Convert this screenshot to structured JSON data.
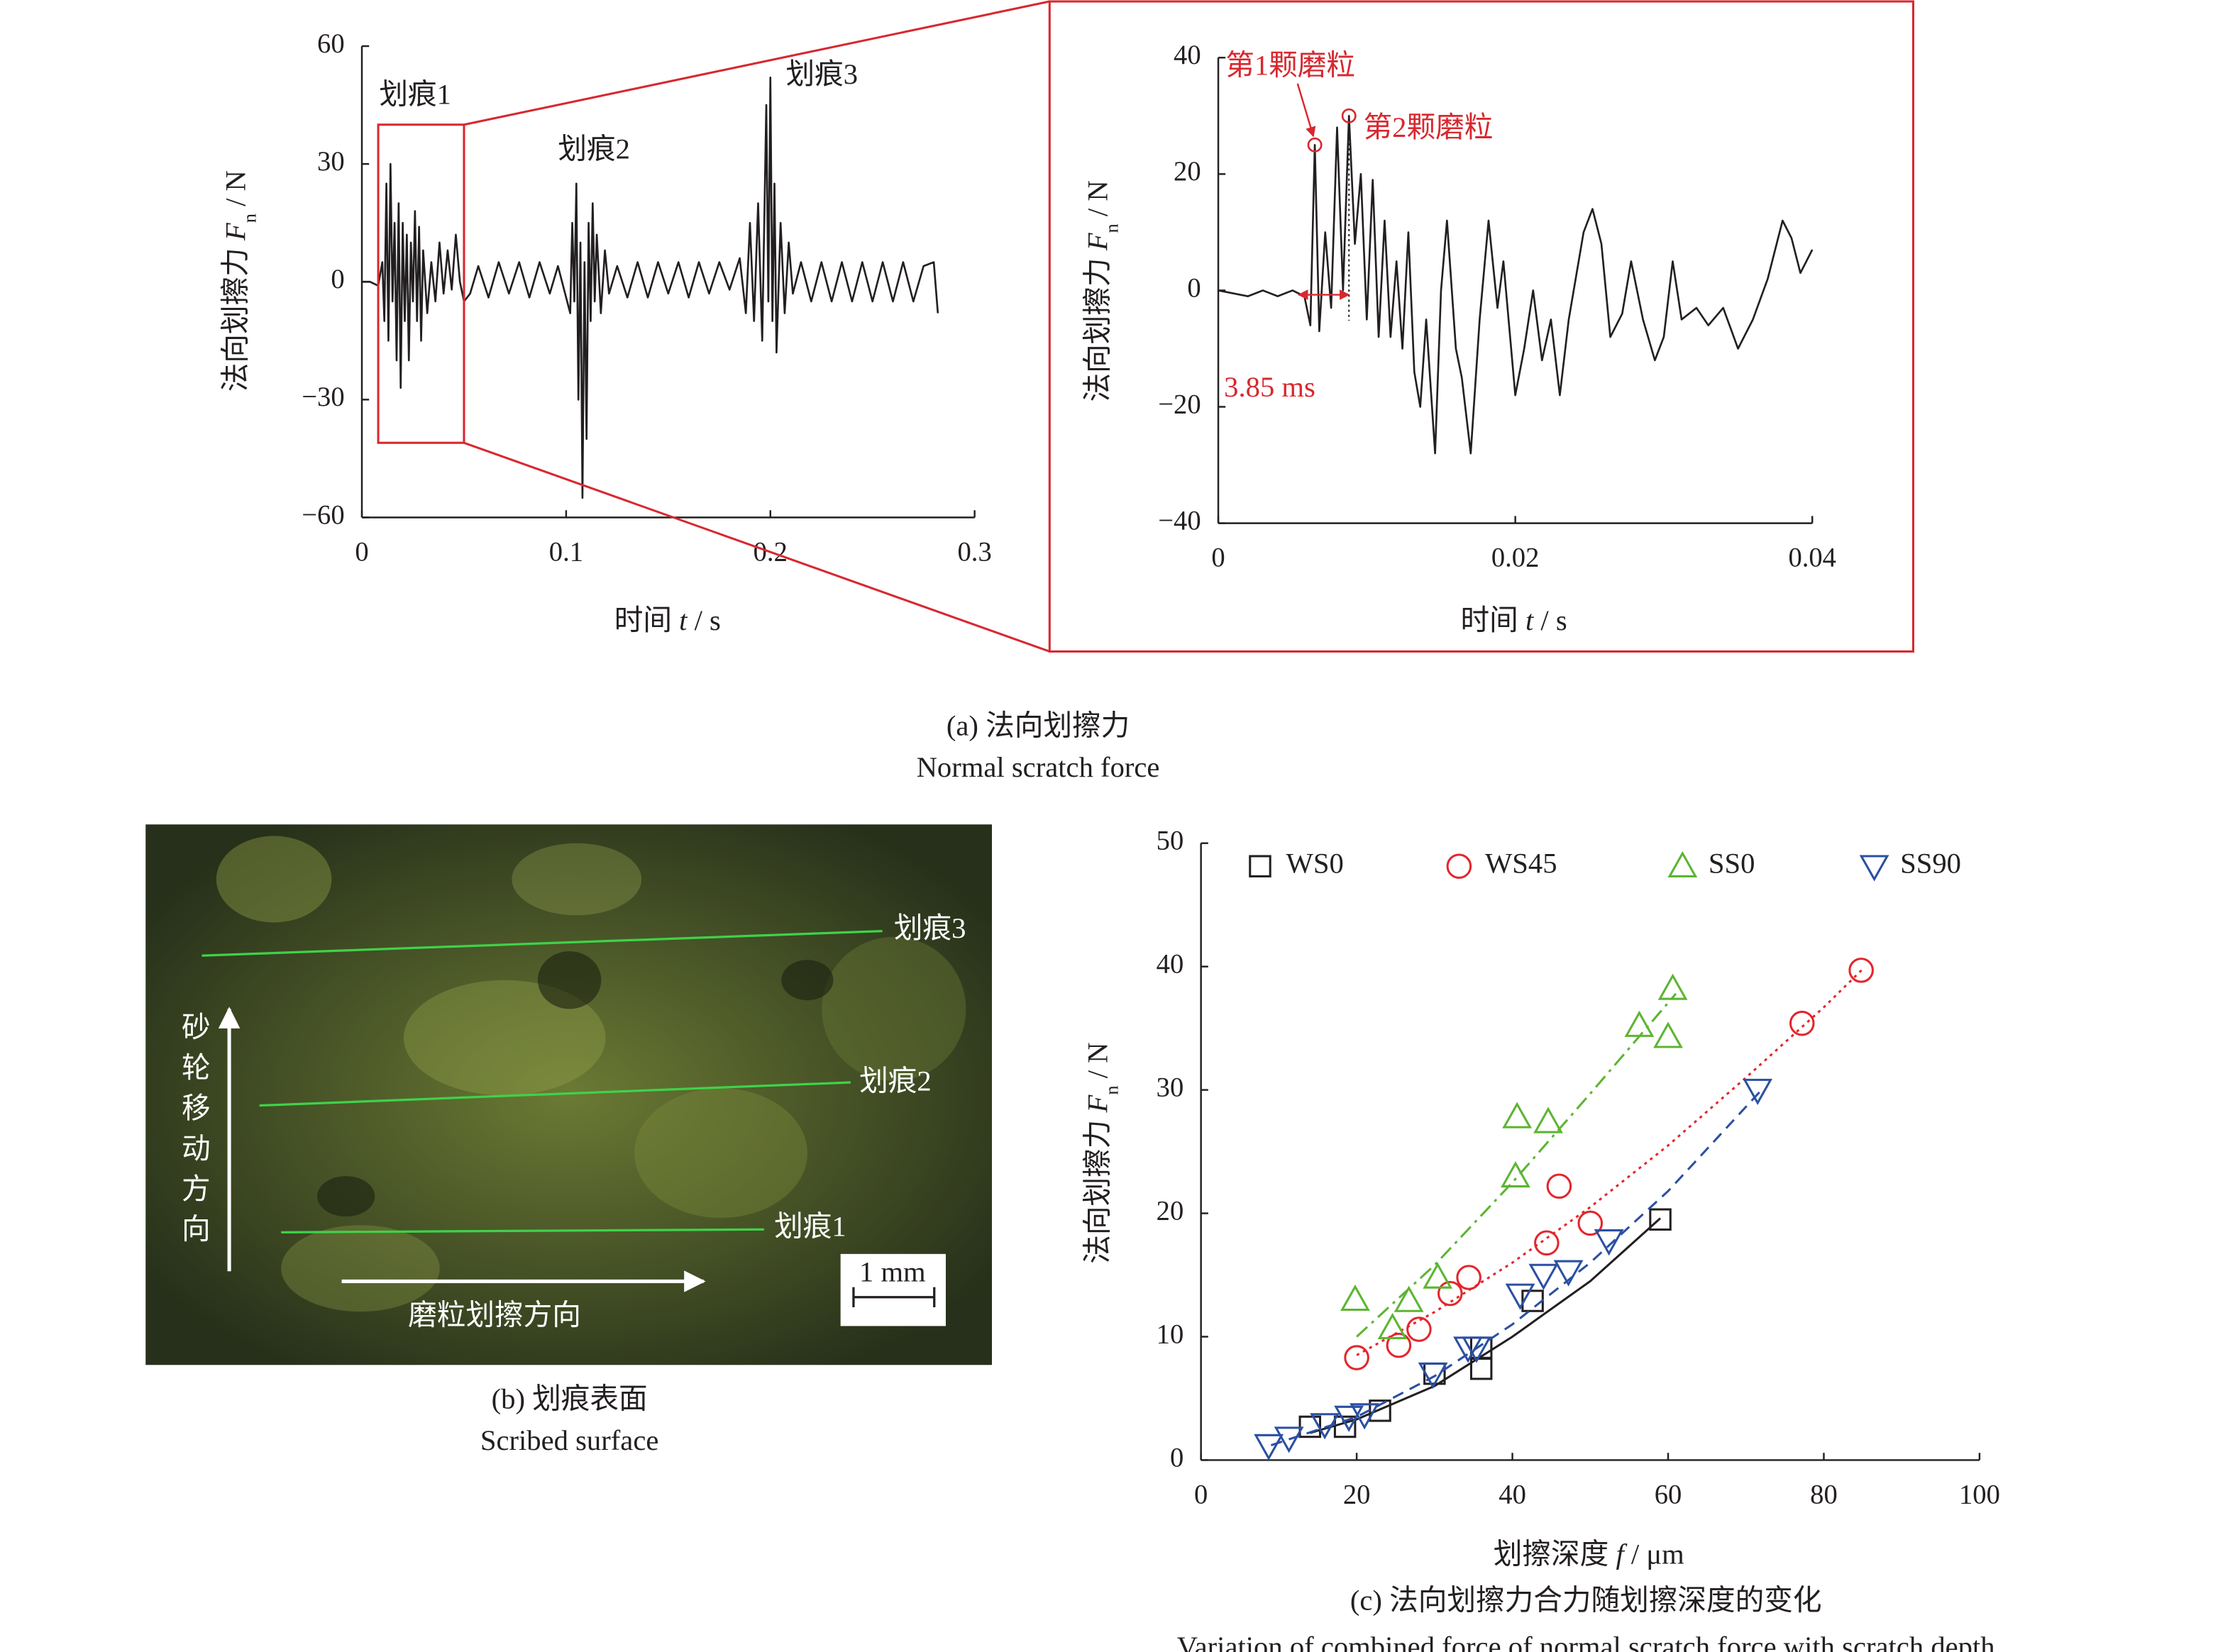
{
  "chart_data": [
    {
      "type": "line",
      "xlabel": [
        "时间 ",
        "t",
        " / s"
      ],
      "ylabel": [
        "法向划擦力 ",
        "F",
        "n",
        " / N"
      ],
      "x": [
        0,
        0.004,
        0.008,
        0.01,
        0.011,
        0.012,
        0.013,
        0.014,
        0.015,
        0.016,
        0.017,
        0.018,
        0.019,
        0.02,
        0.021,
        0.022,
        0.023,
        0.024,
        0.025,
        0.026,
        0.027,
        0.028,
        0.029,
        0.03,
        0.032,
        0.034,
        0.036,
        0.038,
        0.04,
        0.042,
        0.044,
        0.046,
        0.048,
        0.05,
        0.053,
        0.057,
        0.062,
        0.067,
        0.072,
        0.077,
        0.082,
        0.087,
        0.092,
        0.096,
        0.099,
        0.102,
        0.103,
        0.104,
        0.105,
        0.106,
        0.107,
        0.108,
        0.109,
        0.11,
        0.111,
        0.112,
        0.113,
        0.114,
        0.115,
        0.117,
        0.119,
        0.121,
        0.125,
        0.13,
        0.135,
        0.14,
        0.145,
        0.15,
        0.155,
        0.16,
        0.165,
        0.17,
        0.175,
        0.18,
        0.185,
        0.188,
        0.19,
        0.192,
        0.194,
        0.196,
        0.198,
        0.199,
        0.2,
        0.201,
        0.202,
        0.203,
        0.205,
        0.207,
        0.209,
        0.211,
        0.215,
        0.22,
        0.225,
        0.23,
        0.235,
        0.24,
        0.245,
        0.25,
        0.255,
        0.26,
        0.265,
        0.27,
        0.275,
        0.28,
        0.282
      ],
      "values": [
        0,
        0,
        -1,
        5,
        -10,
        25,
        -15,
        30,
        -5,
        15,
        -20,
        20,
        -27,
        15,
        -10,
        12,
        -20,
        10,
        -5,
        18,
        -10,
        14,
        -15,
        8,
        -8,
        5,
        -5,
        10,
        -3,
        8,
        -2,
        12,
        0,
        -5,
        -3,
        4,
        -4,
        5,
        -3,
        5,
        -4,
        5,
        -3,
        4,
        -2,
        -8,
        15,
        -5,
        25,
        -30,
        10,
        -55,
        5,
        -40,
        15,
        -10,
        20,
        -5,
        12,
        -8,
        8,
        -3,
        4,
        -4,
        5,
        -4,
        5,
        -3,
        5,
        -4,
        5,
        -3,
        5,
        -2,
        6,
        -8,
        15,
        -10,
        20,
        -15,
        45,
        -5,
        52,
        -10,
        25,
        -18,
        15,
        -8,
        10,
        -3,
        5,
        -5,
        5,
        -5,
        5,
        -5,
        5,
        -5,
        5,
        -5,
        5,
        -5,
        4,
        5,
        -8
      ],
      "color": "#231f20",
      "xlim": [
        0,
        0.3
      ],
      "xticks": [
        0,
        0.1,
        0.2,
        0.3
      ],
      "ylim": [
        -60,
        60
      ],
      "yticks": [
        {
          "value": -60,
          "label": "−60"
        },
        {
          "value": -30,
          "label": "−30"
        },
        0,
        30,
        60
      ],
      "annotations": [
        "划痕1",
        "划痕2",
        "划痕3"
      ],
      "highlight": {
        "x": [
          0.008,
          0.05
        ],
        "y": [
          -41,
          40
        ],
        "color": "#d7282f"
      }
    },
    {
      "type": "line",
      "xlabel": [
        "时间 ",
        "t",
        " / s"
      ],
      "ylabel": [
        "法向划擦力 ",
        "F",
        "n",
        " / N"
      ],
      "x": [
        0,
        0.002,
        0.003,
        0.004,
        0.005,
        0.0058,
        0.0062,
        0.0065,
        0.0068,
        0.0072,
        0.0076,
        0.008,
        0.0084,
        0.0088,
        0.0092,
        0.0096,
        0.01,
        0.0104,
        0.0108,
        0.0112,
        0.0116,
        0.012,
        0.0124,
        0.0128,
        0.0132,
        0.0136,
        0.014,
        0.0146,
        0.015,
        0.0154,
        0.016,
        0.0164,
        0.017,
        0.0176,
        0.0182,
        0.0188,
        0.0192,
        0.02,
        0.0206,
        0.0212,
        0.0218,
        0.0224,
        0.023,
        0.0236,
        0.0246,
        0.0252,
        0.0258,
        0.0264,
        0.0272,
        0.0278,
        0.0286,
        0.0294,
        0.03,
        0.0306,
        0.0312,
        0.0322,
        0.033,
        0.034,
        0.035,
        0.036,
        0.037,
        0.038,
        0.0386,
        0.0392,
        0.04
      ],
      "values": [
        0,
        -1,
        0,
        -1,
        0,
        -1,
        -6,
        25,
        -7,
        10,
        -3,
        28,
        0,
        30,
        8,
        20,
        -5,
        19,
        -8,
        12,
        -8,
        5,
        -10,
        10,
        -14,
        -20,
        -5,
        -28,
        0,
        12,
        -10,
        -15,
        -28,
        -5,
        12,
        -3,
        5,
        -18,
        -10,
        0,
        -12,
        -5,
        -18,
        -5,
        10,
        14,
        8,
        -8,
        -4,
        5,
        -5,
        -12,
        -8,
        5,
        -5,
        -3,
        -6,
        -3,
        -10,
        -5,
        2,
        12,
        9,
        3,
        7
      ],
      "color": "#231f20",
      "xlim": [
        0,
        0.04
      ],
      "xticks": [
        0,
        0.02,
        0.04
      ],
      "ylim": [
        -40,
        40
      ],
      "yticks": [
        {
          "value": -40,
          "label": "−40"
        },
        {
          "value": -20,
          "label": "−20"
        },
        0,
        20,
        40
      ],
      "annotations": [
        "第1颗磨粒",
        "第2颗磨粒",
        "3.85 ms"
      ],
      "annotation_color": "#d7282f",
      "frame_color": "#d7282f"
    },
    {
      "type": "scatter",
      "xlabel": [
        "划擦深度 ",
        "f",
        " / μm"
      ],
      "ylabel": [
        "法向划擦力 ",
        "F",
        "n",
        " / N"
      ],
      "xlim": [
        0,
        100
      ],
      "xticks": [
        0,
        20,
        40,
        60,
        80,
        100
      ],
      "ylim": [
        0,
        50
      ],
      "yticks": [
        0,
        10,
        20,
        30,
        40,
        50
      ],
      "legend": "top",
      "series": [
        {
          "name": "WS0",
          "color": "#231f20",
          "marker": "square",
          "dash": "solid",
          "x": [
            14,
            18.5,
            23,
            30,
            36,
            36,
            42.6,
            59
          ],
          "values": [
            2.7,
            2.7,
            4,
            7,
            7.4,
            9.1,
            12.9,
            19.5
          ],
          "fit": {
            "x": [
              14,
              20,
              30,
              40,
              50,
              59
            ],
            "y": [
              2.2,
              3.3,
              6,
              10,
              14.5,
              19.6
            ]
          }
        },
        {
          "name": "WS45",
          "color": "#e3262c",
          "marker": "circle",
          "dash": "dotted",
          "x": [
            20,
            25.4,
            28,
            32,
            34.4,
            44.4,
            46,
            50,
            77.2,
            84.8
          ],
          "values": [
            8.3,
            9.3,
            10.6,
            13.5,
            14.8,
            17.6,
            22.2,
            19.2,
            35.4,
            39.7
          ],
          "fit": {
            "x": [
              20,
              30,
              40,
              50,
              60,
              70,
              80,
              85
            ],
            "y": [
              8.5,
              12,
              16,
              20.5,
              25.5,
              31,
              36.7,
              39.8
            ]
          }
        },
        {
          "name": "SS0",
          "color": "#5cb531",
          "marker": "triangle",
          "dash": "dashdot",
          "x": [
            19.8,
            24.6,
            26.7,
            30.4,
            40.4,
            40.6,
            44.6,
            56.3,
            60,
            60.6
          ],
          "values": [
            13,
            10.7,
            12.9,
            14.8,
            23,
            27.8,
            27.4,
            35.2,
            34.3,
            38.2
          ],
          "fit": {
            "x": [
              20,
              30,
              40,
              50,
              61
            ],
            "y": [
              10,
              15.8,
              22.5,
              29.7,
              37.8
            ]
          }
        },
        {
          "name": "SS90",
          "color": "#2b4fa3",
          "marker": "triangle-down",
          "dash": "dashed",
          "x": [
            8.7,
            11.3,
            15.9,
            19,
            21,
            29.8,
            34.3,
            35.4,
            41,
            44,
            47.2,
            52.4,
            71.5
          ],
          "values": [
            1.2,
            1.8,
            2.9,
            3.5,
            3.7,
            7,
            9.1,
            9.1,
            13.4,
            15,
            15.3,
            17.8,
            30
          ],
          "fit": {
            "x": [
              9,
              20,
              30,
              40,
              50,
              60,
              72
            ],
            "y": [
              1.2,
              3.5,
              6.8,
              11,
              16,
              21.8,
              30
            ]
          }
        }
      ]
    }
  ],
  "photo": {
    "labels": [
      "划痕3",
      "划痕2",
      "划痕1"
    ],
    "vertical_label": "砂轮移动方向",
    "horizontal_label": "磨粒划擦方向",
    "scale_bar": "1 mm"
  },
  "captions": {
    "a": [
      "(a) 法向划擦力",
      "Normal scratch force"
    ],
    "b": [
      "(b) 划痕表面",
      "Scribed surface"
    ],
    "c": [
      "(c) 法向划擦力合力随划擦深度的变化",
      "Variation of combined force of normal scratch force with scratch depth"
    ]
  }
}
